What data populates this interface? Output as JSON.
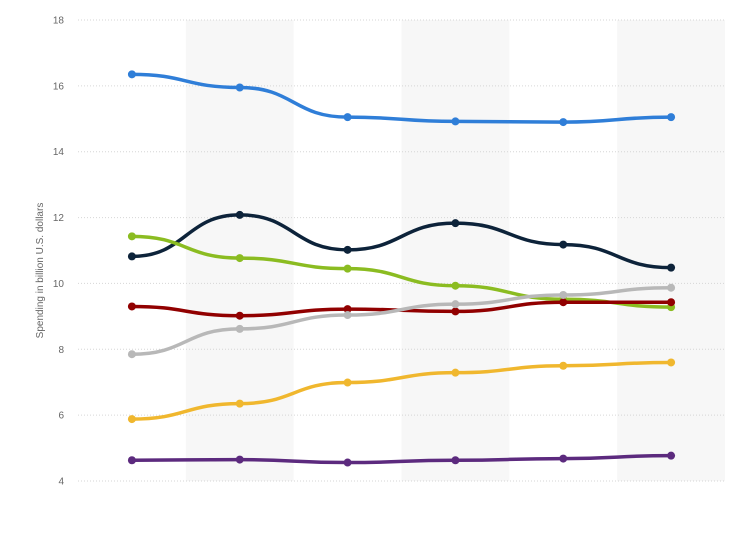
{
  "chart_data": {
    "type": "line",
    "ylabel": "Spending in billion U.S. dollars",
    "ylim": [
      4,
      18
    ],
    "yticks": [
      4,
      6,
      8,
      10,
      12,
      14,
      16,
      18
    ],
    "categories": [
      "",
      "",
      "",
      "",
      "",
      ""
    ],
    "grid": true,
    "series": [
      {
        "color": "#2f7ed8",
        "values": [
          16.35,
          15.95,
          15.05,
          14.92,
          14.9,
          15.05
        ]
      },
      {
        "color": "#0d233a",
        "values": [
          10.82,
          12.08,
          11.02,
          11.83,
          11.18,
          10.48
        ]
      },
      {
        "color": "#8bbc21",
        "values": [
          11.43,
          10.77,
          10.45,
          9.93,
          9.52,
          9.28
        ]
      },
      {
        "color": "#910000",
        "values": [
          9.3,
          9.02,
          9.22,
          9.15,
          9.43,
          9.43
        ]
      },
      {
        "color": "#b8b8b8",
        "values": [
          7.85,
          8.62,
          9.04,
          9.37,
          9.65,
          9.87
        ]
      },
      {
        "color": "#f0b72e",
        "values": [
          5.88,
          6.35,
          6.99,
          7.29,
          7.5,
          7.6
        ]
      },
      {
        "color": "#5c2a7e",
        "values": [
          4.63,
          4.65,
          4.56,
          4.63,
          4.68,
          4.77
        ]
      }
    ]
  }
}
